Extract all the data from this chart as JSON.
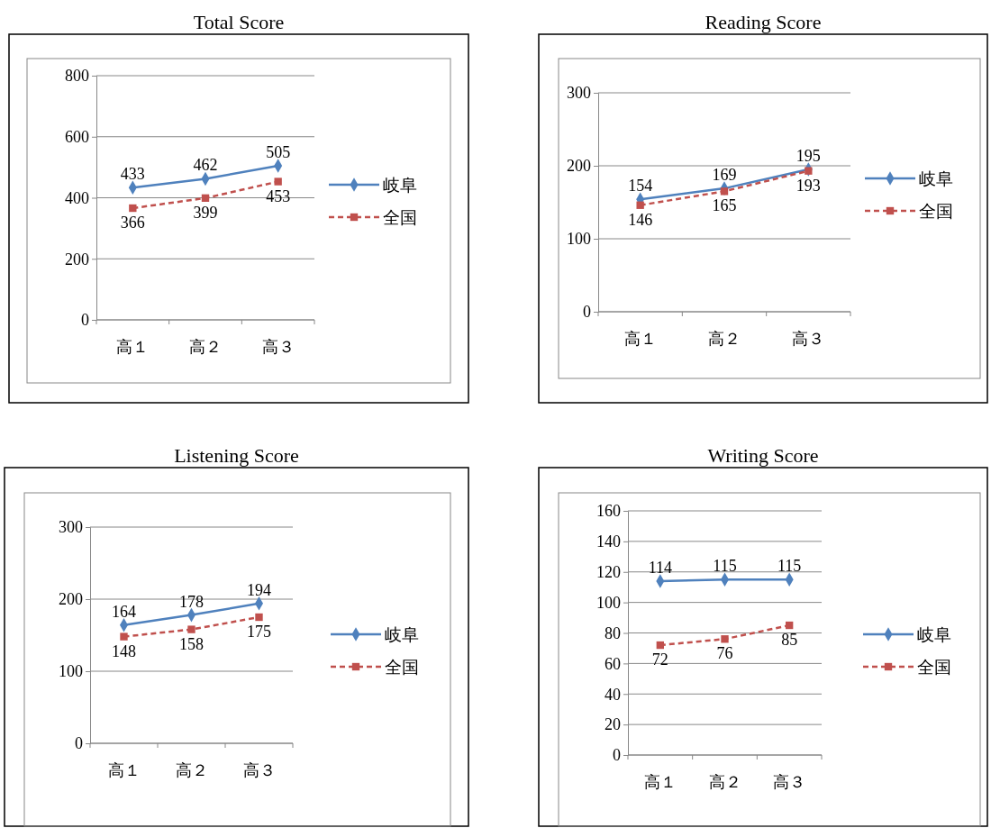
{
  "chart_data": [
    {
      "type": "line",
      "title": "Total Score",
      "categories": [
        "高１",
        "高２",
        "高３"
      ],
      "series": [
        {
          "name": "岐阜",
          "color": "#4f81bd",
          "values": [
            433,
            462,
            505
          ],
          "marker": "diamond",
          "line_style": "solid"
        },
        {
          "name": "全国",
          "color": "#c0504d",
          "values": [
            366,
            399,
            453
          ],
          "marker": "square",
          "line_style": "dashed"
        }
      ],
      "ylim": [
        0,
        800
      ],
      "yticks": [
        0,
        200,
        400,
        600,
        800
      ],
      "grid": "y",
      "legend": "right",
      "data_labels": true
    },
    {
      "type": "line",
      "title": "Reading Score",
      "categories": [
        "高１",
        "高２",
        "高３"
      ],
      "series": [
        {
          "name": "岐阜",
          "color": "#4f81bd",
          "values": [
            154,
            169,
            195
          ],
          "marker": "diamond",
          "line_style": "solid"
        },
        {
          "name": "全国",
          "color": "#c0504d",
          "values": [
            146,
            165,
            193
          ],
          "marker": "square",
          "line_style": "dashed"
        }
      ],
      "ylim": [
        0,
        300
      ],
      "yticks": [
        0,
        100,
        200,
        300
      ],
      "grid": "y",
      "legend": "right",
      "data_labels": true
    },
    {
      "type": "line",
      "title": "Listening Score",
      "categories": [
        "高１",
        "高２",
        "高３"
      ],
      "series": [
        {
          "name": "岐阜",
          "color": "#4f81bd",
          "values": [
            164,
            178,
            194
          ],
          "marker": "diamond",
          "line_style": "solid"
        },
        {
          "name": "全国",
          "color": "#c0504d",
          "values": [
            148,
            158,
            175
          ],
          "marker": "square",
          "line_style": "dashed"
        }
      ],
      "ylim": [
        0,
        300
      ],
      "yticks": [
        0,
        100,
        200,
        300
      ],
      "grid": "y",
      "legend": "right",
      "data_labels": true
    },
    {
      "type": "line",
      "title": "Writing Score",
      "categories": [
        "高１",
        "高２",
        "高３"
      ],
      "series": [
        {
          "name": "岐阜",
          "color": "#4f81bd",
          "values": [
            114,
            115,
            115
          ],
          "marker": "diamond",
          "line_style": "solid"
        },
        {
          "name": "全国",
          "color": "#c0504d",
          "values": [
            72,
            76,
            85
          ],
          "marker": "square",
          "line_style": "dashed"
        }
      ],
      "ylim": [
        0,
        160
      ],
      "yticks": [
        0,
        20,
        40,
        60,
        80,
        100,
        120,
        140,
        160
      ],
      "grid": "y",
      "legend": "right",
      "data_labels": true
    }
  ]
}
